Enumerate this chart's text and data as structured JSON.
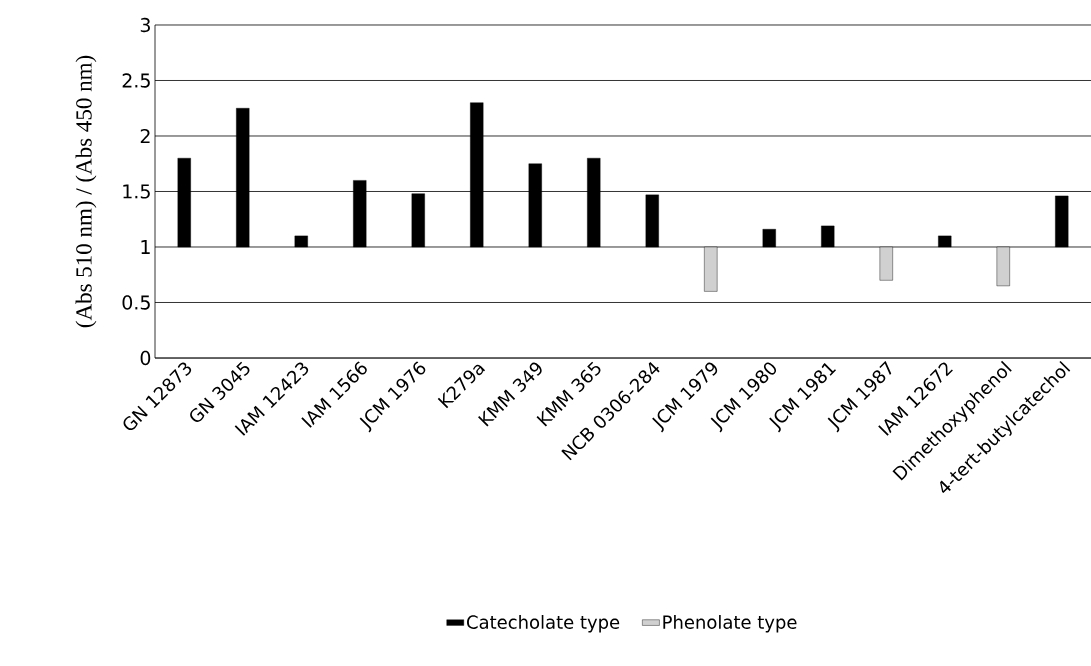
{
  "chart_data": {
    "type": "bar",
    "ylabel": "(Abs 510 nm) / (Abs 450 nm)",
    "categories": [
      "GN 12873",
      "GN 3045",
      "IAM 12423",
      "IAM 1566",
      "JCM 1976",
      "K279a",
      "KMM 349",
      "KMM 365",
      "NCB 0306-284",
      "JCM 1979",
      "JCM 1980",
      "JCM 1981",
      "JCM 1987",
      "IAM 12672",
      "Dimethoxyphenol",
      "4-tert-butylcatechol"
    ],
    "series": [
      {
        "name": "Catecholate type",
        "color": "#000000",
        "base": [
          1,
          1,
          1,
          1,
          1,
          1,
          1,
          1,
          1,
          null,
          1,
          1,
          null,
          1,
          null,
          1
        ],
        "values": [
          0.8,
          1.25,
          0.1,
          0.6,
          0.48,
          1.3,
          0.75,
          0.8,
          0.47,
          null,
          0.16,
          0.19,
          null,
          0.1,
          null,
          0.46
        ]
      },
      {
        "name": "Phenolate type",
        "color": "#d0d0d0",
        "base": [
          null,
          null,
          null,
          null,
          null,
          null,
          null,
          null,
          null,
          1,
          null,
          null,
          1,
          null,
          1,
          null
        ],
        "values": [
          null,
          null,
          null,
          null,
          null,
          null,
          null,
          null,
          null,
          -0.4,
          null,
          null,
          -0.3,
          null,
          -0.35,
          null
        ]
      }
    ],
    "ylim": [
      0,
      3
    ],
    "yticks": [
      0,
      0.5,
      1,
      1.5,
      2,
      2.5,
      3
    ],
    "grid": "y",
    "legend": "bottom"
  }
}
